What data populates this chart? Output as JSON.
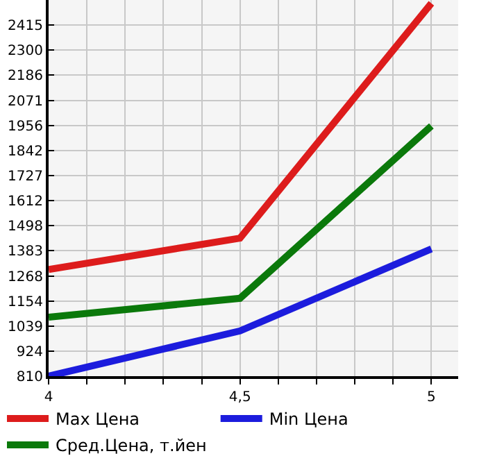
{
  "chart_data": {
    "type": "line",
    "x": [
      4,
      4.5,
      5
    ],
    "series": [
      {
        "name": "Max Цена",
        "color": "#dd1c1c",
        "values": [
          1298,
          1441,
          2515
        ]
      },
      {
        "name": "Min Цена",
        "color": "#1c1cdd",
        "values": [
          810,
          1017,
          1392
        ]
      },
      {
        "name": "Сред.Цена, т.йен",
        "color": "#0b790b",
        "values": [
          1080,
          1166,
          1954
        ]
      }
    ],
    "xlim": [
      4,
      5.07
    ],
    "xticks": [
      4,
      {
        "value": 4.1,
        "label": null
      },
      {
        "value": 4.2,
        "label": null
      },
      {
        "value": 4.3,
        "label": null
      },
      {
        "value": 4.4,
        "label": null
      },
      {
        "value": 4.5,
        "label": "4,5"
      },
      {
        "value": 4.6,
        "label": null
      },
      {
        "value": 4.7,
        "label": null
      },
      {
        "value": 4.8,
        "label": null
      },
      {
        "value": 4.9,
        "label": null
      },
      5
    ],
    "ylim": [
      810,
      2530
    ],
    "yticks": [
      810,
      924,
      1039,
      1154,
      1268,
      1383,
      1498,
      1612,
      1727,
      1842,
      1956,
      2071,
      2186,
      2300,
      2415
    ],
    "grid": true,
    "legend": "bottom",
    "marker": "none",
    "line_style": "solid"
  }
}
